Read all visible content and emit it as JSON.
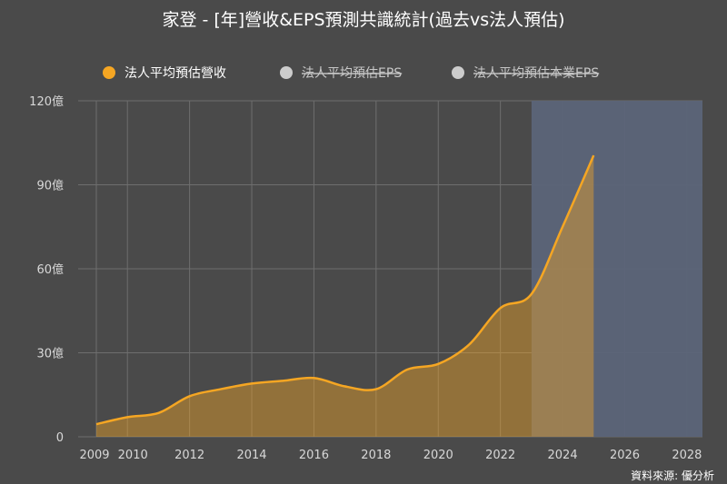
{
  "chart_data": {
    "type": "area",
    "title": "家登 - [年]營收&EPS預測共識統計(過去vs法人預估)",
    "legend": [
      {
        "label": "法人平均預估營收",
        "color": "#f5a623",
        "active": true
      },
      {
        "label": "法人平均預估EPS",
        "color": "#c8c8c8",
        "active": false
      },
      {
        "label": "法人平均預估本業EPS",
        "color": "#c8c8c8",
        "active": false
      }
    ],
    "legend_position": "top",
    "x_ticks": [
      "2009",
      "2010",
      "2012",
      "2014",
      "2016",
      "2018",
      "2020",
      "2022",
      "2024",
      "2026",
      "2028"
    ],
    "x_range": [
      2009,
      2028.5
    ],
    "y_ticks": [
      "0",
      "30億",
      "60億",
      "90億",
      "120億"
    ],
    "y_tick_values": [
      0,
      30,
      60,
      90,
      120
    ],
    "ylim": [
      0,
      120
    ],
    "grid": true,
    "series": [
      {
        "name": "法人平均預估營收",
        "color": "#f5a623",
        "x": [
          2009,
          2010,
          2011,
          2012,
          2013,
          2014,
          2015,
          2016,
          2017,
          2018,
          2019,
          2020,
          2021,
          2022,
          2023,
          2024,
          2025
        ],
        "values": [
          4.5,
          7,
          8.5,
          14.5,
          17,
          19,
          20,
          21,
          18,
          17,
          24,
          26,
          33,
          46,
          51,
          75,
          100.5
        ]
      }
    ],
    "forecast_start": 2023,
    "forecast_band_color": "#5b6478",
    "source": "資料來源: 優分析"
  }
}
